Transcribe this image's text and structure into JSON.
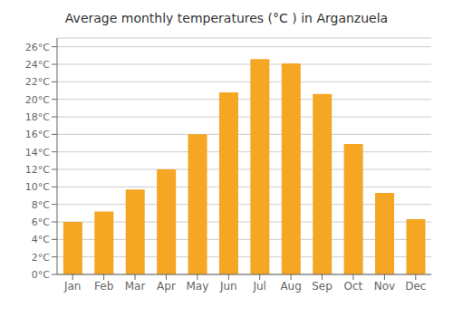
{
  "chart_data": {
    "type": "bar",
    "title": "Average monthly temperatures (°C ) in Arganzuela",
    "categories": [
      "Jan",
      "Feb",
      "Mar",
      "Apr",
      "May",
      "Jun",
      "Jul",
      "Aug",
      "Sep",
      "Oct",
      "Nov",
      "Dec"
    ],
    "values": [
      6.0,
      7.2,
      9.7,
      12.0,
      16.0,
      20.8,
      24.6,
      24.1,
      20.6,
      14.9,
      9.3,
      6.3
    ],
    "color": "#F5A623",
    "ylim": [
      0,
      27
    ],
    "yticks": [
      {
        "value": 0,
        "label": "0°C"
      },
      {
        "value": 2,
        "label": "2°C"
      },
      {
        "value": 4,
        "label": "4°C"
      },
      {
        "value": 6,
        "label": "6°C"
      },
      {
        "value": 8,
        "label": "8°C"
      },
      {
        "value": 10,
        "label": "10°C"
      },
      {
        "value": 12,
        "label": "12°C"
      },
      {
        "value": 14,
        "label": "14°C"
      },
      {
        "value": 16,
        "label": "16°C"
      },
      {
        "value": 18,
        "label": "18°C"
      },
      {
        "value": 20,
        "label": "20°C"
      },
      {
        "value": 22,
        "label": "22°C"
      },
      {
        "value": 24,
        "label": "24°C"
      },
      {
        "value": 26,
        "label": "26°C"
      }
    ],
    "grid": true
  }
}
